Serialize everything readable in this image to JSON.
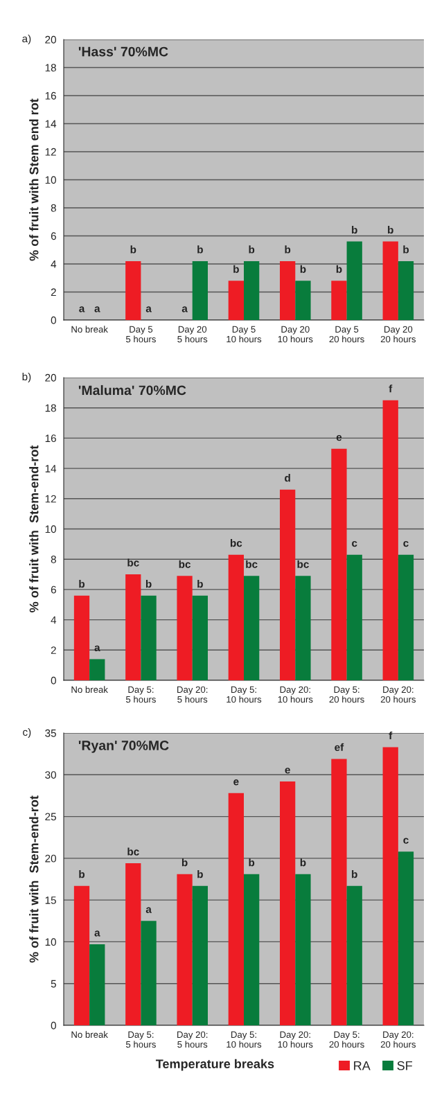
{
  "chart_data": [
    {
      "type": "bar",
      "title": "'Hass' 70%MC",
      "ylabel": "% of fruit with Stem end rot",
      "annotations": [
        "a)"
      ],
      "categories": [
        "No break",
        "Day 5\n5 hours",
        "Day 20\n5 hours",
        "Day 5\n10 hours",
        "Day 20\n10 hours",
        "Day 5\n20 hours",
        "Day 20\n20 hours"
      ],
      "series": [
        {
          "color": "#ee1c24",
          "values": [
            0,
            4.2,
            0,
            2.8,
            4.2,
            2.8,
            5.6
          ],
          "value_labels": [
            "a",
            "b",
            "a",
            "b",
            "b",
            "b",
            "b"
          ]
        },
        {
          "color": "#087c3c",
          "values": [
            0,
            0,
            4.2,
            4.2,
            2.8,
            5.6,
            4.2
          ],
          "value_labels": [
            "a",
            "a",
            "b",
            "b",
            "b",
            "b",
            "b"
          ]
        }
      ],
      "ylim": [
        0,
        20
      ],
      "yticks": [
        0,
        2,
        4,
        6,
        8,
        10,
        12,
        14,
        16,
        18,
        20
      ],
      "grid": "y",
      "legend": false
    },
    {
      "type": "bar",
      "title": "'Maluma' 70%MC",
      "ylabel": "% of fruit with  Stem-end-rot",
      "annotations": [
        "b)"
      ],
      "categories": [
        "No break",
        "Day 5:\n5 hours",
        "Day 20:\n5 hours",
        "Day 5:\n10 hours",
        "Day 20:\n10 hours",
        "Day 5:\n20 hours",
        "Day 20:\n20 hours"
      ],
      "series": [
        {
          "color": "#ee1c24",
          "values": [
            5.6,
            7.0,
            6.9,
            8.3,
            12.6,
            15.3,
            18.5
          ],
          "value_labels": [
            "b",
            "bc",
            "bc",
            "bc",
            "d",
            "e",
            "f"
          ]
        },
        {
          "color": "#087c3c",
          "values": [
            1.4,
            5.6,
            5.6,
            6.9,
            6.9,
            8.3,
            8.3
          ],
          "value_labels": [
            "a",
            "b",
            "b",
            "bc",
            "bc",
            "c",
            "c"
          ]
        }
      ],
      "ylim": [
        0,
        20
      ],
      "yticks": [
        0,
        2,
        4,
        6,
        8,
        10,
        12,
        14,
        16,
        18,
        20
      ],
      "grid": "y",
      "legend": false
    },
    {
      "type": "bar",
      "title": "'Ryan' 70%MC",
      "ylabel": "% of fruit with  Stem-end-rot",
      "xlabel": "Temperature breaks",
      "annotations": [
        "c)"
      ],
      "categories": [
        "No break",
        "Day 5:\n5 hours",
        "Day 20:\n5 hours",
        "Day 5:\n10 hours",
        "Day 20:\n10 hours",
        "Day 5:\n20 hours",
        "Day 20:\n20 hours"
      ],
      "series": [
        {
          "name": "RA",
          "color": "#ee1c24",
          "values": [
            16.7,
            19.4,
            18.1,
            27.8,
            29.2,
            31.9,
            33.3
          ],
          "value_labels": [
            "b",
            "bc",
            "b",
            "e",
            "e",
            "ef",
            "f"
          ]
        },
        {
          "name": "SF",
          "color": "#087c3c",
          "values": [
            9.7,
            12.5,
            16.7,
            18.1,
            18.1,
            16.7,
            20.8
          ],
          "value_labels": [
            "a",
            "a",
            "b",
            "b",
            "b",
            "b",
            "c"
          ]
        }
      ],
      "ylim": [
        0,
        35
      ],
      "yticks": [
        0,
        5,
        10,
        15,
        20,
        25,
        30,
        35
      ],
      "grid": "y",
      "legend": "bottom right"
    }
  ]
}
